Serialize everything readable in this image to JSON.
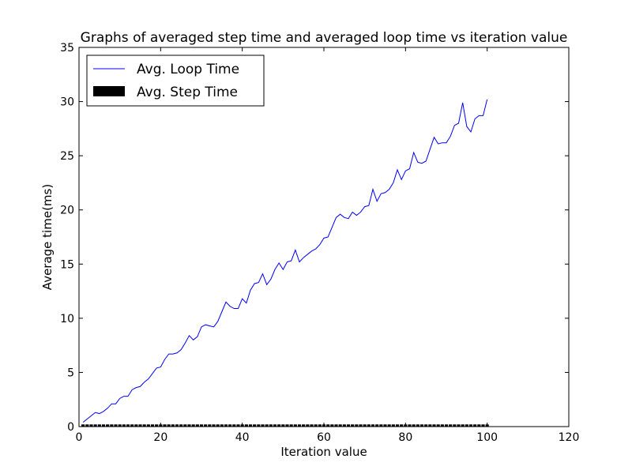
{
  "chart_data": {
    "type": "line",
    "title": "Graphs of averaged step time and averaged loop time vs iteration value",
    "xlabel": "Iteration value",
    "ylabel": "Average time(ms)",
    "xlim": [
      0,
      120
    ],
    "ylim": [
      0,
      35
    ],
    "xticks": [
      "0",
      "20",
      "40",
      "60",
      "80",
      "100",
      "120"
    ],
    "yticks": [
      "0",
      "5",
      "10",
      "15",
      "20",
      "25",
      "30",
      "35"
    ],
    "grid": false,
    "legend_position": "top-left",
    "series": [
      {
        "name": "Avg. Loop Time",
        "kind": "line",
        "color": "#0000ff",
        "x": [
          1,
          2,
          3,
          4,
          5,
          6,
          7,
          8,
          9,
          10,
          11,
          12,
          13,
          14,
          15,
          16,
          17,
          18,
          19,
          20,
          21,
          22,
          23,
          24,
          25,
          26,
          27,
          28,
          29,
          30,
          31,
          32,
          33,
          34,
          35,
          36,
          37,
          38,
          39,
          40,
          41,
          42,
          43,
          44,
          45,
          46,
          47,
          48,
          49,
          50,
          51,
          52,
          53,
          54,
          55,
          56,
          57,
          58,
          59,
          60,
          61,
          62,
          63,
          64,
          65,
          66,
          67,
          68,
          69,
          70,
          71,
          72,
          73,
          74,
          75,
          76,
          77,
          78,
          79,
          80,
          81,
          82,
          83,
          84,
          85,
          86,
          87,
          88,
          89,
          90,
          91,
          92,
          93,
          94,
          95,
          96,
          97,
          98,
          99,
          100
        ],
        "y": [
          0.4,
          0.7,
          1.0,
          1.3,
          1.2,
          1.4,
          1.7,
          2.1,
          2.1,
          2.6,
          2.8,
          2.8,
          3.4,
          3.6,
          3.7,
          4.1,
          4.4,
          4.9,
          5.4,
          5.5,
          6.2,
          6.7,
          6.7,
          6.8,
          7.1,
          7.7,
          8.4,
          8.0,
          8.3,
          9.2,
          9.4,
          9.3,
          9.2,
          9.7,
          10.6,
          11.5,
          11.1,
          10.9,
          10.9,
          11.8,
          11.4,
          12.6,
          13.2,
          13.3,
          14.1,
          13.1,
          13.6,
          14.5,
          15.1,
          14.5,
          15.2,
          15.3,
          16.3,
          15.2,
          15.6,
          15.9,
          16.2,
          16.4,
          16.8,
          17.4,
          17.5,
          18.4,
          19.3,
          19.6,
          19.3,
          19.2,
          19.8,
          19.5,
          19.8,
          20.3,
          20.4,
          21.9,
          20.8,
          21.5,
          21.6,
          21.9,
          22.5,
          23.7,
          22.8,
          23.6,
          23.8,
          25.3,
          24.4,
          24.3,
          24.5,
          25.6,
          26.7,
          26.1,
          26.2,
          26.2,
          26.8,
          27.8,
          28.0,
          29.9,
          27.7,
          27.2,
          28.4,
          28.7,
          28.7,
          30.2
        ]
      },
      {
        "name": "Avg. Step Time",
        "kind": "bar",
        "color": "#000000",
        "x": [
          1,
          2,
          3,
          4,
          5,
          6,
          7,
          8,
          9,
          10,
          11,
          12,
          13,
          14,
          15,
          16,
          17,
          18,
          19,
          20,
          21,
          22,
          23,
          24,
          25,
          26,
          27,
          28,
          29,
          30,
          31,
          32,
          33,
          34,
          35,
          36,
          37,
          38,
          39,
          40,
          41,
          42,
          43,
          44,
          45,
          46,
          47,
          48,
          49,
          50,
          51,
          52,
          53,
          54,
          55,
          56,
          57,
          58,
          59,
          60,
          61,
          62,
          63,
          64,
          65,
          66,
          67,
          68,
          69,
          70,
          71,
          72,
          73,
          74,
          75,
          76,
          77,
          78,
          79,
          80,
          81,
          82,
          83,
          84,
          85,
          86,
          87,
          88,
          89,
          90,
          91,
          92,
          93,
          94,
          95,
          96,
          97,
          98,
          99,
          100
        ],
        "y": [
          0.2,
          0.2,
          0.2,
          0.2,
          0.2,
          0.2,
          0.2,
          0.2,
          0.2,
          0.2,
          0.2,
          0.2,
          0.2,
          0.2,
          0.2,
          0.2,
          0.2,
          0.2,
          0.2,
          0.2,
          0.2,
          0.2,
          0.2,
          0.2,
          0.2,
          0.2,
          0.2,
          0.2,
          0.2,
          0.2,
          0.2,
          0.2,
          0.2,
          0.2,
          0.2,
          0.2,
          0.2,
          0.2,
          0.2,
          0.2,
          0.2,
          0.2,
          0.2,
          0.2,
          0.2,
          0.2,
          0.2,
          0.2,
          0.2,
          0.2,
          0.2,
          0.2,
          0.2,
          0.2,
          0.2,
          0.2,
          0.2,
          0.2,
          0.2,
          0.2,
          0.2,
          0.2,
          0.2,
          0.2,
          0.2,
          0.2,
          0.2,
          0.2,
          0.2,
          0.2,
          0.2,
          0.2,
          0.2,
          0.2,
          0.2,
          0.2,
          0.2,
          0.2,
          0.2,
          0.2,
          0.2,
          0.2,
          0.2,
          0.2,
          0.2,
          0.2,
          0.2,
          0.2,
          0.2,
          0.2,
          0.2,
          0.2,
          0.2,
          0.2,
          0.2,
          0.2,
          0.2,
          0.2,
          0.2,
          0.2
        ]
      }
    ]
  }
}
